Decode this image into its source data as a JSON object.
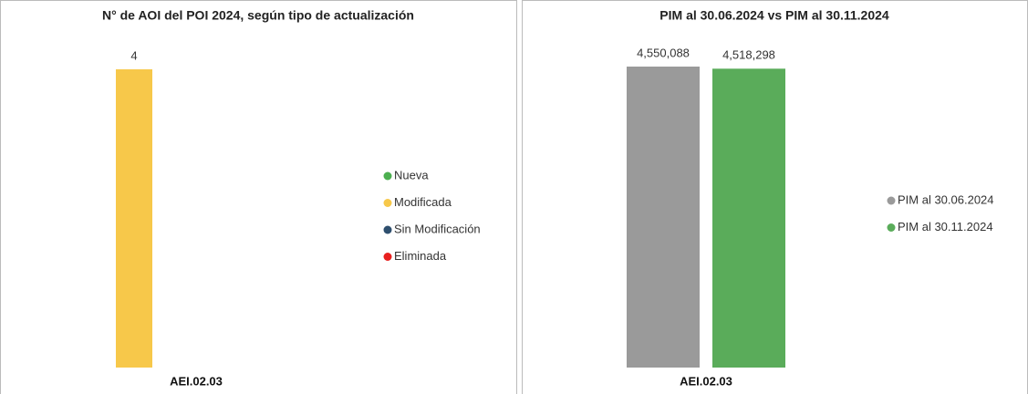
{
  "chart_data": [
    {
      "type": "bar",
      "title": "N° de AOI del POI 2024, según tipo de actualización",
      "categories": [
        "AEI.02.03"
      ],
      "series": [
        {
          "name": "Nueva",
          "color": "#4caf50",
          "values": [
            null
          ]
        },
        {
          "name": "Modificada",
          "color": "#f7c84a",
          "values": [
            4
          ]
        },
        {
          "name": "Sin Modificación",
          "color": "#2e4f6e",
          "values": [
            null
          ]
        },
        {
          "name": "Eliminada",
          "color": "#e8201f",
          "values": [
            null
          ]
        }
      ],
      "ylim": [
        0,
        4
      ],
      "legend": "right"
    },
    {
      "type": "bar",
      "title": "PIM al 30.06.2024 vs PIM al 30.11.2024",
      "categories": [
        "AEI.02.03"
      ],
      "series": [
        {
          "name": "PIM al 30.06.2024",
          "color": "#9a9a9a",
          "values": [
            4550088
          ],
          "value_labels": [
            "4,550,088"
          ]
        },
        {
          "name": "PIM al 30.11.2024",
          "color": "#5aac5a",
          "values": [
            4518298
          ],
          "value_labels": [
            "4,518,298"
          ]
        }
      ],
      "ylim": [
        0,
        4550088
      ],
      "legend": "right"
    }
  ]
}
